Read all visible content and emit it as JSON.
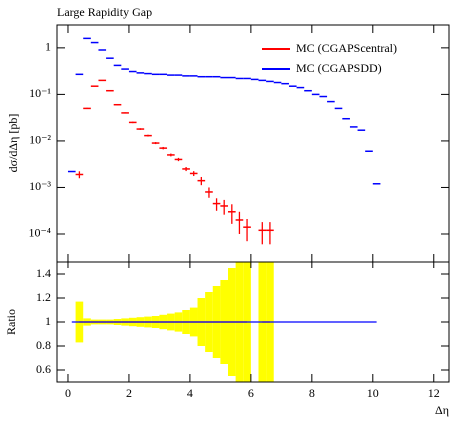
{
  "chart_data": [
    {
      "type": "points",
      "title": "Large Rapidity Gap",
      "ylabel": "dσ/dΔη [pb]",
      "log_y": true,
      "legend": "upper right",
      "x": [
        0.125,
        0.375,
        0.625,
        0.875,
        1.125,
        1.375,
        1.625,
        1.875,
        2.125,
        2.375,
        2.625,
        2.875,
        3.125,
        3.375,
        3.625,
        3.875,
        4.125,
        4.375,
        4.625,
        4.875,
        5.125,
        5.375,
        5.625,
        5.875,
        6.125,
        6.375,
        6.625,
        6.875,
        7.125,
        7.375,
        7.625,
        7.875,
        8.125,
        8.375,
        8.625,
        8.875,
        9.125,
        9.375,
        9.625,
        9.875,
        10.125
      ],
      "series": [
        {
          "name": "MC (CGAPScentral)",
          "color": "#ff0000",
          "values": [
            null,
            0.0019,
            0.05,
            0.15,
            0.2,
            0.12,
            0.06,
            0.04,
            0.025,
            0.018,
            0.013,
            0.009,
            0.007,
            0.005,
            0.004,
            0.0025,
            0.002,
            0.0014,
            0.0008,
            0.00045,
            0.0004,
            0.0003,
            0.0002,
            0.00014,
            null,
            0.00012,
            0.00012,
            null,
            null,
            null,
            null,
            null,
            null,
            null,
            null,
            null,
            null,
            null,
            null,
            null,
            null
          ]
        },
        {
          "name": "MC (CGAPSDD)",
          "color": "#0000ff",
          "values": [
            0.0022,
            0.27,
            1.6,
            1.3,
            0.9,
            0.6,
            0.42,
            0.35,
            0.31,
            0.29,
            0.28,
            0.27,
            0.27,
            0.26,
            0.26,
            0.25,
            0.25,
            0.24,
            0.24,
            0.24,
            0.23,
            0.23,
            0.22,
            0.22,
            0.21,
            0.2,
            0.19,
            0.18,
            0.17,
            0.15,
            0.14,
            0.12,
            0.1,
            0.09,
            0.07,
            0.05,
            0.03,
            0.02,
            0.017,
            0.006,
            0.0012
          ]
        }
      ],
      "xlim": [
        -0.36,
        12.5
      ],
      "ylim": [
        2.5e-05,
        3.1
      ],
      "yticks": [
        {
          "value": 1,
          "label": "1"
        },
        {
          "value": 0.1,
          "label": "10⁻¹"
        },
        {
          "value": 0.01,
          "label": "10⁻²"
        },
        {
          "value": 0.001,
          "label": "10⁻³"
        },
        {
          "value": 0.0001,
          "label": "10⁻⁴"
        }
      ]
    },
    {
      "type": "ratio",
      "ylabel": "Ratio",
      "xlabel": "Δη",
      "x": [
        0.125,
        0.375,
        0.625,
        0.875,
        1.125,
        1.375,
        1.625,
        1.875,
        2.125,
        2.375,
        2.625,
        2.875,
        3.125,
        3.375,
        3.625,
        3.875,
        4.125,
        4.375,
        4.625,
        4.875,
        5.125,
        5.375,
        5.625,
        5.875,
        6.125,
        6.375,
        6.625,
        6.875,
        7.125,
        7.375,
        7.625,
        7.875,
        8.125,
        8.375,
        8.625,
        8.875,
        9.125,
        9.375,
        9.625,
        9.875,
        10.125
      ],
      "band": {
        "color": "#ffff00",
        "upper": [
          null,
          1.17,
          1.03,
          1.02,
          1.02,
          1.02,
          1.025,
          1.03,
          1.035,
          1.04,
          1.045,
          1.05,
          1.06,
          1.07,
          1.08,
          1.1,
          1.12,
          1.2,
          1.25,
          1.3,
          1.35,
          1.45,
          1.5,
          1.5,
          null,
          1.5,
          1.5,
          null,
          null,
          null,
          null,
          null,
          null,
          null,
          null,
          null,
          null,
          null,
          null,
          null,
          null
        ],
        "lower": [
          null,
          0.83,
          0.97,
          0.98,
          0.98,
          0.98,
          0.975,
          0.97,
          0.965,
          0.96,
          0.955,
          0.95,
          0.94,
          0.93,
          0.92,
          0.9,
          0.88,
          0.8,
          0.75,
          0.7,
          0.65,
          0.55,
          0.5,
          0.5,
          null,
          0.5,
          0.5,
          null,
          null,
          null,
          null,
          null,
          null,
          null,
          null,
          null,
          null,
          null,
          null,
          null,
          null
        ]
      },
      "series": [
        {
          "color": "#ff0000",
          "values": [
            null,
            1,
            1,
            1,
            1,
            1,
            1,
            1,
            1,
            1,
            1,
            1,
            1,
            1,
            1,
            1,
            1,
            1,
            1,
            1,
            1,
            1,
            1,
            1,
            null,
            1,
            1,
            null,
            null,
            null,
            null,
            null,
            null,
            null,
            null,
            null,
            null,
            null,
            null,
            null,
            null
          ]
        },
        {
          "color": "#0000ff",
          "values": [
            1,
            1,
            1,
            1,
            1,
            1,
            1,
            1,
            1,
            1,
            1,
            1,
            1,
            1,
            1,
            1,
            1,
            1,
            1,
            1,
            1,
            1,
            1,
            1,
            1,
            1,
            1,
            1,
            1,
            1,
            1,
            1,
            1,
            1,
            1,
            1,
            1,
            1,
            1,
            1,
            1
          ]
        }
      ],
      "xlim": [
        -0.36,
        12.5
      ],
      "ylim": [
        0.5,
        1.5
      ],
      "xticks": [
        0,
        2,
        4,
        6,
        8,
        10,
        12
      ],
      "yticks": [
        0.6,
        0.8,
        1,
        1.2,
        1.4
      ]
    }
  ]
}
